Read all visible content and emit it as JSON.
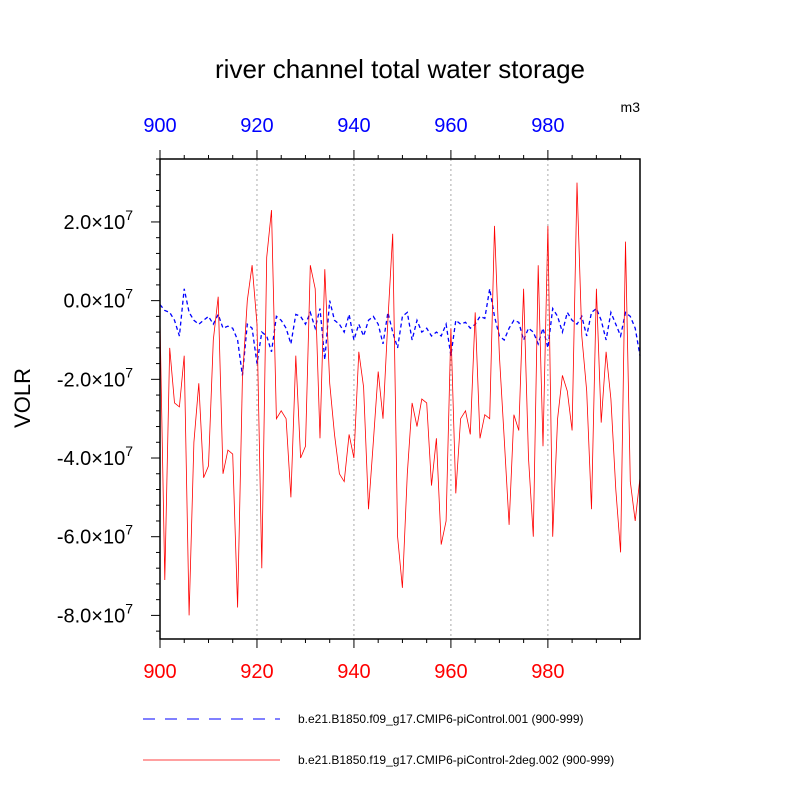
{
  "chart_data": {
    "type": "line",
    "title": "river channel total water storage",
    "units": "m3",
    "ylabel": "VOLR",
    "xlim": [
      900,
      999
    ],
    "ylim": [
      -86000000,
      36000000
    ],
    "x_ticks": [
      900,
      920,
      940,
      960,
      980
    ],
    "y_ticks": [
      20000000,
      0,
      -20000000,
      -40000000,
      -60000000,
      -80000000
    ],
    "y_tick_mantissas": [
      "2.0",
      "0.0",
      "-2.0",
      "-4.0",
      "-6.0",
      "-8.0"
    ],
    "y_tick_exponent": "7",
    "y_minor_step": 4000000,
    "x_minor_step": 5,
    "grid": "vertical-dotted",
    "top_axis_color": "#0000ff",
    "bottom_axis_color": "#ff0000",
    "series": [
      {
        "name": "b.e21.B1850.f09_g17.CMIP6-piControl.001 (900-999)",
        "color": "#0000ff",
        "style": "dashed",
        "x": [
          900,
          901,
          902,
          903,
          904,
          905,
          906,
          907,
          908,
          909,
          910,
          911,
          912,
          913,
          914,
          915,
          916,
          917,
          918,
          919,
          920,
          921,
          922,
          923,
          924,
          925,
          926,
          927,
          928,
          929,
          930,
          931,
          932,
          933,
          934,
          935,
          936,
          937,
          938,
          939,
          940,
          941,
          942,
          943,
          944,
          945,
          946,
          947,
          948,
          949,
          950,
          951,
          952,
          953,
          954,
          955,
          956,
          957,
          958,
          959,
          960,
          961,
          962,
          963,
          964,
          965,
          966,
          967,
          968,
          969,
          970,
          971,
          972,
          973,
          974,
          975,
          976,
          977,
          978,
          979,
          980,
          981,
          982,
          983,
          984,
          985,
          986,
          987,
          988,
          989,
          990,
          991,
          992,
          993,
          994,
          995,
          996,
          997,
          998,
          999
        ],
        "y": [
          -1000000,
          -2500000,
          -3000000,
          -5000000,
          -9000000,
          3000000,
          -3000000,
          -5000000,
          -6000000,
          -5000000,
          -4000000,
          -6000000,
          -3500000,
          -7000000,
          -6500000,
          -7000000,
          -10000000,
          -19000000,
          -6000000,
          -7000000,
          -16000000,
          -8000000,
          -9000000,
          -13000000,
          -4000000,
          -5000000,
          -7000000,
          -11000000,
          -3500000,
          -4000000,
          -6000000,
          -3000000,
          -7000000,
          -2000000,
          -15000000,
          0,
          -5000000,
          -6000000,
          -8000000,
          -3500000,
          -10000000,
          -6000000,
          -9000000,
          -5000000,
          -4000000,
          -6000000,
          -11000000,
          -3000000,
          -8000000,
          -12000000,
          -4000000,
          -3000000,
          -10000000,
          -5000000,
          -8000000,
          -7000000,
          -9000000,
          -8000000,
          -9000000,
          -6000000,
          -14000000,
          -5000000,
          -6000000,
          -5500000,
          -7000000,
          -6000000,
          -4000000,
          -4500000,
          3000000,
          -4000000,
          -9000000,
          -10000000,
          -7000000,
          -5000000,
          -5500000,
          -10000000,
          -7000000,
          -8000000,
          -11000000,
          -7000000,
          -12000000,
          -2000000,
          -4000000,
          -8000000,
          -3000000,
          -5000000,
          -6000000,
          -4000000,
          -9000000,
          -3000000,
          -2000000,
          -5000000,
          -10000000,
          -3000000,
          -6000000,
          -9000000,
          -3000000,
          -4000000,
          -7000000,
          -14000000
        ]
      },
      {
        "name": "b.e21.B1850.f19_g17.CMIP6-piControl-2deg.002 (900-999)",
        "color": "#ff0000",
        "style": "solid",
        "x": [
          900,
          901,
          902,
          903,
          904,
          905,
          906,
          907,
          908,
          909,
          910,
          911,
          912,
          913,
          914,
          915,
          916,
          917,
          918,
          919,
          920,
          921,
          922,
          923,
          924,
          925,
          926,
          927,
          928,
          929,
          930,
          931,
          932,
          933,
          934,
          935,
          936,
          937,
          938,
          939,
          940,
          941,
          942,
          943,
          944,
          945,
          946,
          947,
          948,
          949,
          950,
          951,
          952,
          953,
          954,
          955,
          956,
          957,
          958,
          959,
          960,
          961,
          962,
          963,
          964,
          965,
          966,
          967,
          968,
          969,
          970,
          971,
          972,
          973,
          974,
          975,
          976,
          977,
          978,
          979,
          980,
          981,
          982,
          983,
          984,
          985,
          986,
          987,
          988,
          989,
          990,
          991,
          992,
          993,
          994,
          995,
          996,
          997,
          998,
          999
        ],
        "y": [
          -5000000,
          -71000000,
          -12000000,
          -26000000,
          -27000000,
          -14000000,
          -80000000,
          -36000000,
          -21000000,
          -45000000,
          -42000000,
          -10000000,
          1000000,
          -44000000,
          -38000000,
          -39000000,
          -78000000,
          -20000000,
          0,
          9000000,
          -6000000,
          -68000000,
          11000000,
          23000000,
          -30000000,
          -28000000,
          -30000000,
          -50000000,
          -14000000,
          -40000000,
          -37000000,
          9000000,
          3000000,
          -35000000,
          8000000,
          -21000000,
          -34000000,
          -44000000,
          -46000000,
          -34000000,
          -40000000,
          -13000000,
          -22000000,
          -53000000,
          -36000000,
          -18000000,
          -30000000,
          -5000000,
          17000000,
          -60000000,
          -73000000,
          -44000000,
          -26000000,
          -32000000,
          -25000000,
          -26000000,
          -47000000,
          -35000000,
          -62000000,
          -56000000,
          -7000000,
          -49000000,
          -30000000,
          -28000000,
          -34000000,
          -3000000,
          -35000000,
          -29000000,
          -30000000,
          19000000,
          -14000000,
          -35000000,
          -57000000,
          -29000000,
          -33000000,
          3000000,
          -40000000,
          -60000000,
          9000000,
          -37000000,
          19000000,
          -60000000,
          -30000000,
          -19000000,
          -23000000,
          -33000000,
          30000000,
          -9000000,
          -23000000,
          -53000000,
          3000000,
          -31000000,
          -13000000,
          -25000000,
          -48000000,
          -64000000,
          15000000,
          -46000000,
          -56000000,
          -45000000
        ]
      }
    ]
  }
}
